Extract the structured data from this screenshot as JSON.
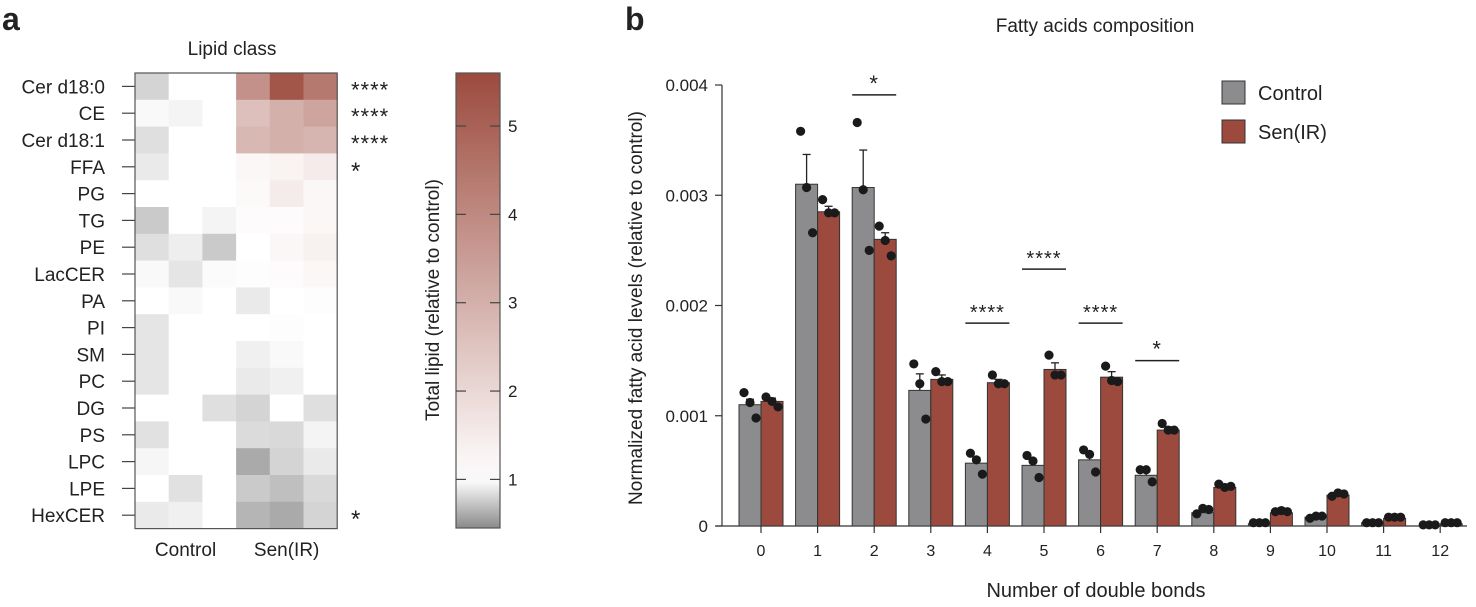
{
  "panel_labels": {
    "a": "a",
    "b": "b"
  },
  "chart_data": [
    {
      "type": "heatmap",
      "title": "Lipid class",
      "rows": [
        "Cer d18:0",
        "CE",
        "Cer d18:1",
        "FFA",
        "PG",
        "TG",
        "PE",
        "LacCER",
        "PA",
        "PI",
        "SM",
        "PC",
        "DG",
        "PS",
        "LPC",
        "LPE",
        "HexCER"
      ],
      "column_groups": [
        {
          "label": "Control",
          "replicates": 3
        },
        {
          "label": "Sen(IR)",
          "replicates": 3
        }
      ],
      "values": [
        [
          0.8,
          1.0,
          1.0,
          3.8,
          5.3,
          4.4
        ],
        [
          0.97,
          0.95,
          1.0,
          2.6,
          3.0,
          3.3
        ],
        [
          0.85,
          1.0,
          1.0,
          2.8,
          3.0,
          2.9
        ],
        [
          0.9,
          1.0,
          1.0,
          1.2,
          1.3,
          1.5
        ],
        [
          1.0,
          1.0,
          1.0,
          1.15,
          1.5,
          1.2
        ],
        [
          0.75,
          1.0,
          0.95,
          1.1,
          1.1,
          1.2
        ],
        [
          0.85,
          0.92,
          0.75,
          1.0,
          1.2,
          1.35
        ],
        [
          0.97,
          0.88,
          0.98,
          1.05,
          1.1,
          1.2
        ],
        [
          1.0,
          0.97,
          1.0,
          0.9,
          1.0,
          1.05
        ],
        [
          0.88,
          1.0,
          1.0,
          1.0,
          1.05,
          1.0
        ],
        [
          0.88,
          1.0,
          1.0,
          0.93,
          0.97,
          1.0
        ],
        [
          0.88,
          1.0,
          1.0,
          0.9,
          0.93,
          1.0
        ],
        [
          1.0,
          1.0,
          0.85,
          0.8,
          1.0,
          0.85
        ],
        [
          0.86,
          1.0,
          1.0,
          0.83,
          0.82,
          0.95
        ],
        [
          0.96,
          1.0,
          1.0,
          0.6,
          0.8,
          0.9
        ],
        [
          1.0,
          0.86,
          1.0,
          0.75,
          0.7,
          0.82
        ],
        [
          0.9,
          0.93,
          1.0,
          0.65,
          0.6,
          0.8
        ]
      ],
      "significance": [
        "****",
        "****",
        "****",
        "*",
        "",
        "",
        "",
        "",
        "",
        "",
        "",
        "",
        "",
        "",
        "",
        "",
        "*"
      ],
      "colorbar": {
        "label": "Total lipid (relative to control)",
        "range": [
          0.45,
          5.6
        ],
        "ticks": [
          1,
          2,
          3,
          4,
          5
        ],
        "low_color": "#8a8a8a",
        "mid_color": "#ffffff",
        "high_color": "#9c4a3d"
      }
    },
    {
      "type": "bar",
      "title": "Fatty acids composition",
      "xlabel": "Number of double bonds",
      "ylabel": "Normalized fatty acid levels (relative to control)",
      "ylim": [
        0,
        0.004
      ],
      "yticks": [
        0,
        0.001,
        0.002,
        0.003,
        0.004
      ],
      "ytick_labels": [
        "0",
        "0.001",
        "0.002",
        "0.003",
        "0.004"
      ],
      "categories": [
        "0",
        "1",
        "2",
        "3",
        "4",
        "5",
        "6",
        "7",
        "8",
        "9",
        "10",
        "11",
        "12"
      ],
      "legend": "top-right",
      "series": [
        {
          "name": "Control",
          "color": "#8c8c8e",
          "values": [
            0.0011,
            0.0031,
            0.00307,
            0.00123,
            0.00057,
            0.00055,
            0.0006,
            0.00046,
            0.00012,
            2e-05,
            8e-05,
            3e-05,
            0.0
          ],
          "error_upper": [
            0.00115,
            0.00337,
            0.00341,
            0.00138,
            0.00062,
            0.0006,
            0.00066,
            0.00049,
            0.00014,
            3e-05,
            9e-05,
            3e-05,
            0.0
          ],
          "points": [
            [
              0.00121,
              0.00112,
              0.00098
            ],
            [
              0.00358,
              0.00307,
              0.00266
            ],
            [
              0.00366,
              0.00305,
              0.0025
            ],
            [
              0.00147,
              0.00129,
              0.00097
            ],
            [
              0.00066,
              0.0006,
              0.00047
            ],
            [
              0.00064,
              0.00059,
              0.00044
            ],
            [
              0.00069,
              0.00065,
              0.00049
            ],
            [
              0.00051,
              0.00051,
              0.0004
            ],
            [
              0.00011,
              0.00016,
              0.00015
            ],
            [
              3e-05,
              3e-05,
              3e-05
            ],
            [
              7e-05,
              9e-05,
              9e-05
            ],
            [
              3e-05,
              3e-05,
              3e-05
            ],
            [
              1e-05,
              1e-05,
              1e-05
            ]
          ]
        },
        {
          "name": "Sen(IR)",
          "color": "#9c4a3d",
          "values": [
            0.00113,
            0.00285,
            0.0026,
            0.00133,
            0.0013,
            0.00142,
            0.00135,
            0.00087,
            0.00035,
            0.00012,
            0.00028,
            7e-05,
            2e-05
          ],
          "error_upper": [
            0.00116,
            0.0029,
            0.00266,
            0.00137,
            0.00133,
            0.00148,
            0.0014,
            0.0009,
            0.00037,
            0.00013,
            0.00029,
            8e-05,
            3e-05
          ],
          "points": [
            [
              0.00117,
              0.00113,
              0.00108
            ],
            [
              0.00296,
              0.00284,
              0.00284
            ],
            [
              0.00272,
              0.00259,
              0.00245
            ],
            [
              0.0014,
              0.00131,
              0.00131
            ],
            [
              0.00137,
              0.00129,
              0.00129
            ],
            [
              0.00155,
              0.00137,
              0.00137
            ],
            [
              0.00145,
              0.00132,
              0.00131
            ],
            [
              0.00093,
              0.00087,
              0.00087
            ],
            [
              0.00038,
              0.00035,
              0.00036
            ],
            [
              0.00013,
              0.00014,
              0.00013
            ],
            [
              0.00027,
              0.0003,
              0.00029
            ],
            [
              8e-05,
              8e-05,
              8e-05
            ],
            [
              3e-05,
              3e-05,
              3e-05
            ]
          ]
        }
      ],
      "annotations": [
        {
          "category": "2",
          "text": "*",
          "y": 0.00391
        },
        {
          "category": "4",
          "text": "****",
          "y": 0.00184
        },
        {
          "category": "5",
          "text": "****",
          "y": 0.00233
        },
        {
          "category": "6",
          "text": "****",
          "y": 0.00184
        },
        {
          "category": "7",
          "text": "*",
          "y": 0.0015
        }
      ]
    }
  ]
}
